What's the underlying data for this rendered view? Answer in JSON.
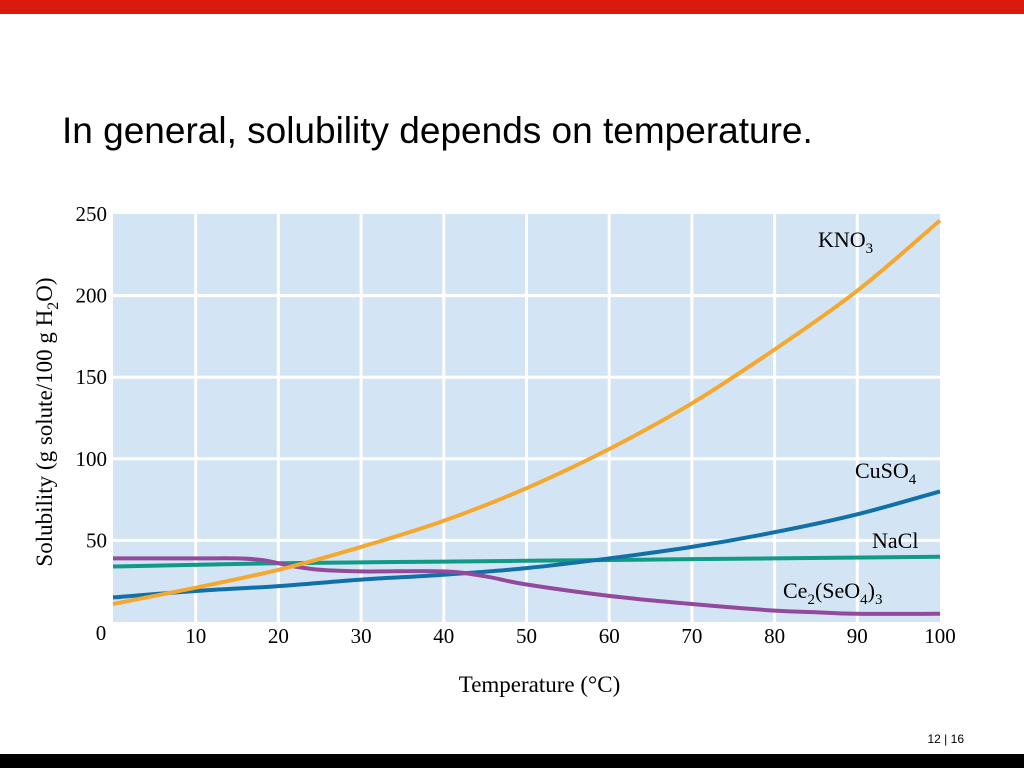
{
  "slide": {
    "title": "In general, solubility depends on temperature.",
    "page_current": "12",
    "page_separator": "|",
    "page_total": "16"
  },
  "colors": {
    "top_bar": "#d91a0e",
    "bottom_bar": "#000000",
    "plot_bg": "#d3e5f4",
    "grid": "#ffffff",
    "KNO3": "#f5a830",
    "CuSO4": "#1270a8",
    "NaCl": "#119a86",
    "Ce2SeO43": "#944a9c"
  },
  "chart_data": {
    "type": "line",
    "xlabel": "Temperature (°C)",
    "ylabel_parts": {
      "a": "Solubility (g solute/100 g H",
      "sub": "2",
      "b": "O)"
    },
    "xlim": [
      0,
      100
    ],
    "ylim": [
      0,
      250
    ],
    "xticks": [
      0,
      10,
      20,
      30,
      40,
      50,
      60,
      70,
      80,
      90,
      100
    ],
    "yticks": [
      50,
      100,
      150,
      200,
      250
    ],
    "ytick_zero": "0",
    "grid": true,
    "series": [
      {
        "key": "KNO3",
        "label_parts": [
          {
            "t": "KNO"
          },
          {
            "t": "3",
            "sub": true
          }
        ],
        "x": [
          0,
          10,
          20,
          30,
          40,
          50,
          60,
          70,
          80,
          90,
          100
        ],
        "y": [
          11,
          21,
          32,
          46,
          62,
          82,
          106,
          134,
          167,
          203,
          246
        ]
      },
      {
        "key": "CuSO4",
        "label_parts": [
          {
            "t": "CuSO"
          },
          {
            "t": "4",
            "sub": true
          }
        ],
        "x": [
          0,
          10,
          20,
          30,
          40,
          50,
          60,
          70,
          80,
          90,
          100
        ],
        "y": [
          15,
          19,
          22,
          26,
          29,
          33,
          39,
          46,
          55,
          66,
          80
        ]
      },
      {
        "key": "NaCl",
        "label_parts": [
          {
            "t": "NaCl"
          }
        ],
        "x": [
          0,
          20,
          40,
          60,
          80,
          100
        ],
        "y": [
          34,
          36,
          37,
          38,
          39,
          40
        ]
      },
      {
        "key": "Ce2SeO43",
        "label_parts": [
          {
            "t": "Ce"
          },
          {
            "t": "2",
            "sub": true
          },
          {
            "t": "(SeO"
          },
          {
            "t": "4",
            "sub": true
          },
          {
            "t": ")"
          },
          {
            "t": "3",
            "sub": true
          }
        ],
        "x": [
          0,
          10,
          15,
          18,
          20,
          22,
          25,
          30,
          40,
          45,
          50,
          60,
          70,
          80,
          85,
          90,
          100
        ],
        "y": [
          39,
          39,
          39,
          38,
          36,
          34,
          32,
          31,
          31,
          28,
          23,
          16,
          11,
          7,
          6,
          5,
          5
        ]
      }
    ]
  }
}
